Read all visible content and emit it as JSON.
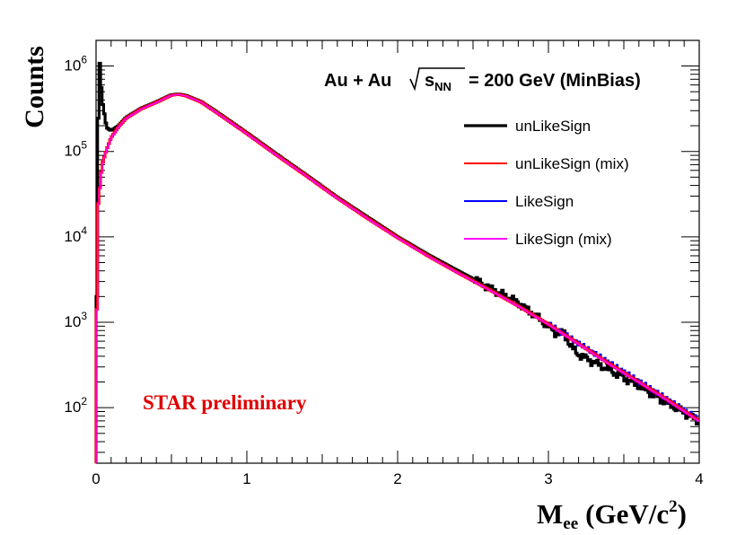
{
  "chart_data": {
    "type": "line",
    "title": "Au + Au",
    "title_sqrt": "s",
    "title_sqrt_sub": "NN",
    "title_energy": "= 200 GeV (MinBias)",
    "watermark": "STAR preliminary",
    "xlabel_main": "M",
    "xlabel_sub": "ee",
    "xlabel_units": "(GeV/c",
    "xlabel_sup": "2",
    "xlabel_close": ")",
    "ylabel": "Counts",
    "xlim": [
      0,
      4
    ],
    "ylim_log10": [
      1.35,
      6.3
    ],
    "yscale": "log",
    "grid": false,
    "legend_position": "top-right",
    "x_ticks": [
      "0",
      "1",
      "2",
      "3",
      "4"
    ],
    "y_ticks": [
      {
        "base": "10",
        "exp": "2"
      },
      {
        "base": "10",
        "exp": "3"
      },
      {
        "base": "10",
        "exp": "4"
      },
      {
        "base": "10",
        "exp": "5"
      },
      {
        "base": "10",
        "exp": "6"
      }
    ],
    "series": [
      {
        "name": "unLikeSign",
        "color": "#000000",
        "points": [
          [
            0.0,
            100
          ],
          [
            0.01,
            40000
          ],
          [
            0.02,
            1500000
          ],
          [
            0.04,
            400000
          ],
          [
            0.07,
            190000
          ],
          [
            0.1,
            175000
          ],
          [
            0.15,
            200000
          ],
          [
            0.2,
            250000
          ],
          [
            0.3,
            320000
          ],
          [
            0.4,
            380000
          ],
          [
            0.5,
            460000
          ],
          [
            0.55,
            470000
          ],
          [
            0.6,
            450000
          ],
          [
            0.7,
            380000
          ],
          [
            0.8,
            290000
          ],
          [
            1.0,
            165000
          ],
          [
            1.2,
            92000
          ],
          [
            1.4,
            52000
          ],
          [
            1.6,
            29000
          ],
          [
            1.8,
            17000
          ],
          [
            2.0,
            10000
          ],
          [
            2.2,
            6200
          ],
          [
            2.4,
            4000
          ],
          [
            2.6,
            2600
          ],
          [
            2.8,
            1700
          ],
          [
            2.9,
            1250
          ],
          [
            3.0,
            900
          ],
          [
            3.05,
            750
          ],
          [
            3.1,
            770
          ],
          [
            3.15,
            520
          ],
          [
            3.2,
            420
          ],
          [
            3.4,
            280
          ],
          [
            3.6,
            180
          ],
          [
            3.8,
            110
          ],
          [
            4.0,
            70
          ]
        ]
      },
      {
        "name": "unLikeSign (mix)",
        "color": "#ff0000",
        "points": [
          [
            0.0,
            100
          ],
          [
            0.01,
            20000
          ],
          [
            0.04,
            70000
          ],
          [
            0.07,
            105000
          ],
          [
            0.1,
            145000
          ],
          [
            0.15,
            195000
          ],
          [
            0.2,
            245000
          ],
          [
            0.3,
            315000
          ],
          [
            0.4,
            375000
          ],
          [
            0.5,
            455000
          ],
          [
            0.55,
            465000
          ],
          [
            0.6,
            445000
          ],
          [
            0.7,
            375000
          ],
          [
            0.8,
            285000
          ],
          [
            1.0,
            162000
          ],
          [
            1.2,
            90000
          ],
          [
            1.4,
            51000
          ],
          [
            1.6,
            28500
          ],
          [
            1.8,
            16500
          ],
          [
            2.0,
            9800
          ],
          [
            2.2,
            6000
          ],
          [
            2.4,
            3800
          ],
          [
            2.6,
            2450
          ],
          [
            2.8,
            1550
          ],
          [
            3.0,
            950
          ],
          [
            3.2,
            560
          ],
          [
            3.4,
            330
          ],
          [
            3.6,
            200
          ],
          [
            3.8,
            120
          ],
          [
            4.0,
            70
          ]
        ]
      },
      {
        "name": "LikeSign",
        "color": "#0000ff",
        "points": [
          [
            0.0,
            100
          ],
          [
            0.01,
            21000
          ],
          [
            0.04,
            72000
          ],
          [
            0.07,
            107000
          ],
          [
            0.1,
            146000
          ],
          [
            0.15,
            196000
          ],
          [
            0.2,
            246000
          ],
          [
            0.3,
            316000
          ],
          [
            0.4,
            376000
          ],
          [
            0.5,
            456000
          ],
          [
            0.55,
            466000
          ],
          [
            0.6,
            446000
          ],
          [
            0.7,
            376000
          ],
          [
            0.8,
            286000
          ],
          [
            1.0,
            163000
          ],
          [
            1.2,
            90500
          ],
          [
            1.4,
            51500
          ],
          [
            1.6,
            28700
          ],
          [
            1.8,
            16600
          ],
          [
            2.0,
            9900
          ],
          [
            2.2,
            6050
          ],
          [
            2.4,
            3850
          ],
          [
            2.6,
            2480
          ],
          [
            2.8,
            1570
          ],
          [
            3.0,
            960
          ],
          [
            3.2,
            570
          ],
          [
            3.4,
            340
          ],
          [
            3.6,
            205
          ],
          [
            3.8,
            122
          ],
          [
            4.0,
            72
          ]
        ]
      },
      {
        "name": "LikeSign (mix)",
        "color": "#ff00ff",
        "points": [
          [
            0.0,
            100
          ],
          [
            0.01,
            19500
          ],
          [
            0.04,
            69000
          ],
          [
            0.07,
            104000
          ],
          [
            0.1,
            144000
          ],
          [
            0.15,
            194000
          ],
          [
            0.2,
            244000
          ],
          [
            0.3,
            314000
          ],
          [
            0.4,
            374000
          ],
          [
            0.5,
            454000
          ],
          [
            0.55,
            464000
          ],
          [
            0.6,
            444000
          ],
          [
            0.7,
            374000
          ],
          [
            0.8,
            284000
          ],
          [
            1.0,
            161000
          ],
          [
            1.2,
            89500
          ],
          [
            1.4,
            50800
          ],
          [
            1.6,
            28300
          ],
          [
            1.8,
            16400
          ],
          [
            2.0,
            9700
          ],
          [
            2.2,
            5950
          ],
          [
            2.4,
            3780
          ],
          [
            2.6,
            2430
          ],
          [
            2.8,
            1540
          ],
          [
            3.0,
            940
          ],
          [
            3.2,
            555
          ],
          [
            3.4,
            325
          ],
          [
            3.6,
            198
          ],
          [
            3.8,
            118
          ],
          [
            4.0,
            69
          ]
        ]
      }
    ]
  }
}
